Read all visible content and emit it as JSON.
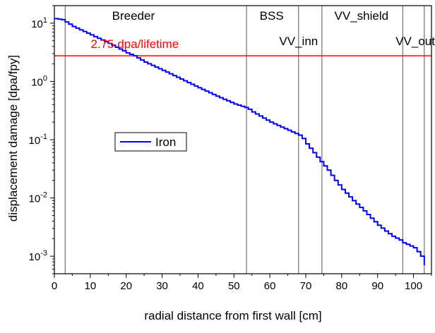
{
  "chart_data": {
    "type": "line",
    "title": "",
    "xlabel": "radial distance from first wall [cm]",
    "ylabel": "displacement damage [dpa/fpy]",
    "xlim": [
      0,
      105
    ],
    "ylim": [
      0.0005,
      20
    ],
    "yscale": "log",
    "grid": false,
    "legend_position": "left-middle",
    "x_ticks": [
      "0",
      "10",
      "20",
      "30",
      "40",
      "50",
      "60",
      "70",
      "80",
      "90",
      "100"
    ],
    "y_ticks": [
      {
        "base": "10",
        "exp": "1"
      },
      {
        "base": "10",
        "exp": "0"
      },
      {
        "base": "10",
        "exp": "-1"
      },
      {
        "base": "10",
        "exp": "-2"
      },
      {
        "base": "10",
        "exp": "-3"
      }
    ],
    "series": [
      {
        "name": "Iron",
        "color": "#0000ff",
        "x": [
          0,
          2,
          3,
          5,
          10,
          15,
          20,
          22,
          25,
          30,
          35,
          40,
          45,
          50,
          53.5,
          55,
          60,
          65,
          68,
          69,
          70,
          72,
          74,
          76,
          78,
          80,
          83,
          86,
          88,
          90,
          92,
          94,
          96,
          97,
          98,
          100,
          101,
          102,
          103
        ],
        "y": [
          12,
          11.5,
          10.5,
          8.8,
          6.3,
          4.5,
          3.1,
          2.75,
          2.15,
          1.55,
          1.1,
          0.78,
          0.56,
          0.41,
          0.35,
          0.3,
          0.2,
          0.145,
          0.12,
          0.105,
          0.085,
          0.06,
          0.042,
          0.03,
          0.02,
          0.014,
          0.009,
          0.006,
          0.0045,
          0.0034,
          0.0027,
          0.0022,
          0.0019,
          0.0017,
          0.0016,
          0.0014,
          0.0012,
          0.001,
          0.0007
        ]
      }
    ],
    "reference_line": {
      "y": 2.75,
      "label": "2.75 dpa/lifetime",
      "color": "#ff0000"
    },
    "regions": [
      {
        "boundary": 3,
        "label": "Breeder",
        "label_x": 22
      },
      {
        "boundary": 53.5,
        "label": "BSS",
        "label_x": 60.5
      },
      {
        "boundary": 68,
        "label": "VV_inn",
        "label_x": 68
      },
      {
        "boundary": 74.5,
        "label": "VV_shield",
        "label_x": 85.5
      },
      {
        "boundary": 97,
        "label": "VV_out",
        "label_x": 100.5
      }
    ],
    "boundary_lines_x": [
      3,
      53.5,
      68,
      74.5,
      97,
      103
    ]
  }
}
